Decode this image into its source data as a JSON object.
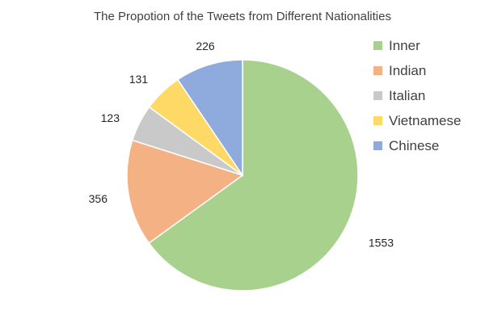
{
  "chart_data": {
    "type": "pie",
    "title": "The Propotion of the Tweets from Different Nationalities",
    "start_angle_deg": 0,
    "direction": "clockwise",
    "legend_position": "right",
    "slices": [
      {
        "label": "Inner",
        "value": 1553,
        "color": "#A9D18E"
      },
      {
        "label": "Indian",
        "value": 356,
        "color": "#F4B183"
      },
      {
        "label": "Italian",
        "value": 123,
        "color": "#C9C9C9"
      },
      {
        "label": "Vietnamese",
        "value": 131,
        "color": "#FFD966"
      },
      {
        "label": "Chinese",
        "value": 226,
        "color": "#8FAADC"
      }
    ]
  }
}
